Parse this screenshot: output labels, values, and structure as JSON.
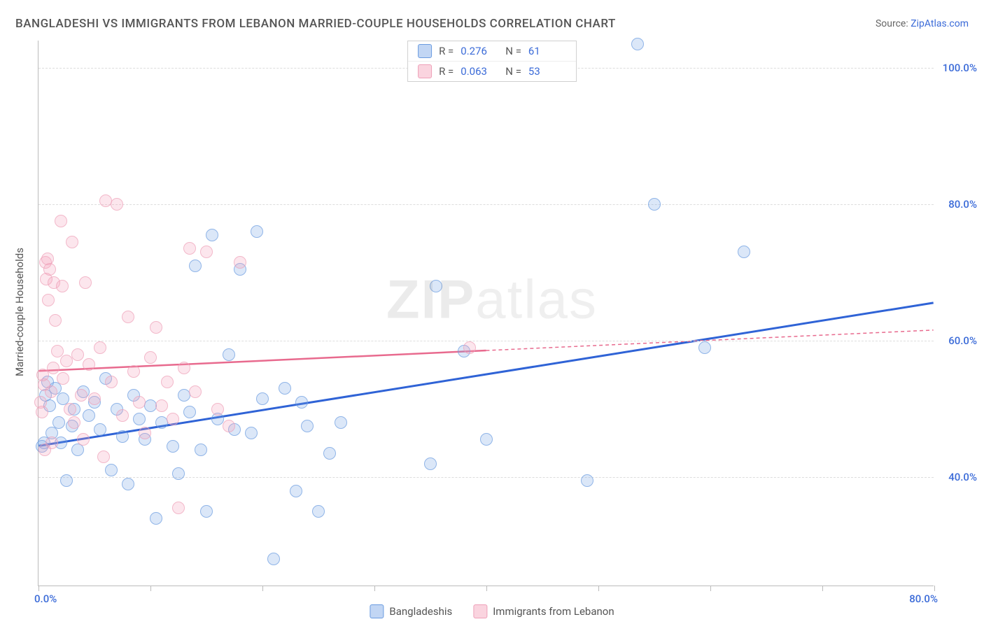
{
  "title": "BANGLADESHI VS IMMIGRANTS FROM LEBANON MARRIED-COUPLE HOUSEHOLDS CORRELATION CHART",
  "source_label": "Source:",
  "source_site": "ZipAtlas.com",
  "watermark_a": "ZIP",
  "watermark_b": "atlas",
  "yaxis_title": "Married-couple Households",
  "chart": {
    "type": "scatter",
    "xlim": [
      0,
      80
    ],
    "ylim": [
      24,
      104
    ],
    "x_ticks": [
      0,
      10,
      20,
      30,
      40,
      50,
      60,
      70,
      80
    ],
    "y_grid": [
      40,
      60,
      80,
      100
    ],
    "y_labels": [
      "40.0%",
      "60.0%",
      "80.0%",
      "100.0%"
    ],
    "x_label_min": "0.0%",
    "x_label_max": "80.0%",
    "background_color": "#ffffff",
    "grid_color": "#dddddd",
    "axis_color": "#bbbbbb",
    "marker_radius": 9,
    "series": [
      {
        "key": "bangladeshi",
        "label": "Bangladeshis",
        "color_fill": "rgba(120,165,230,0.35)",
        "color_stroke": "#6a9be0",
        "trend_color": "#2f63d6",
        "trend_width": 3,
        "trend_dash": "none",
        "R": "0.276",
        "N": "61",
        "trend": {
          "x1": 0,
          "y1": 44.5,
          "x2": 80,
          "y2": 65.5
        },
        "points": [
          [
            0.3,
            44.5
          ],
          [
            0.5,
            45.0
          ],
          [
            0.6,
            52.0
          ],
          [
            0.8,
            54.0
          ],
          [
            1.0,
            50.5
          ],
          [
            1.2,
            46.5
          ],
          [
            1.5,
            53.0
          ],
          [
            1.8,
            48.0
          ],
          [
            2.0,
            45.0
          ],
          [
            2.2,
            51.5
          ],
          [
            2.5,
            39.5
          ],
          [
            3.0,
            47.5
          ],
          [
            3.2,
            50.0
          ],
          [
            3.5,
            44.0
          ],
          [
            4.0,
            52.5
          ],
          [
            4.5,
            49.0
          ],
          [
            5.0,
            51.0
          ],
          [
            5.5,
            47.0
          ],
          [
            6.0,
            54.5
          ],
          [
            6.5,
            41.0
          ],
          [
            7.0,
            50.0
          ],
          [
            7.5,
            46.0
          ],
          [
            8.0,
            39.0
          ],
          [
            8.5,
            52.0
          ],
          [
            9.0,
            48.5
          ],
          [
            9.5,
            45.5
          ],
          [
            10.0,
            50.5
          ],
          [
            10.5,
            34.0
          ],
          [
            11.0,
            48.0
          ],
          [
            12.0,
            44.5
          ],
          [
            12.5,
            40.5
          ],
          [
            13.0,
            52.0
          ],
          [
            13.5,
            49.5
          ],
          [
            14.0,
            71.0
          ],
          [
            14.5,
            44.0
          ],
          [
            15.0,
            35.0
          ],
          [
            15.5,
            75.5
          ],
          [
            16.0,
            48.5
          ],
          [
            17.0,
            58.0
          ],
          [
            17.5,
            47.0
          ],
          [
            18.0,
            70.5
          ],
          [
            19.0,
            46.5
          ],
          [
            19.5,
            76.0
          ],
          [
            20.0,
            51.5
          ],
          [
            21.0,
            28.0
          ],
          [
            22.0,
            53.0
          ],
          [
            23.0,
            38.0
          ],
          [
            24.0,
            47.5
          ],
          [
            25.0,
            35.0
          ],
          [
            26.0,
            43.5
          ],
          [
            23.5,
            51.0
          ],
          [
            27.0,
            48.0
          ],
          [
            35.0,
            42.0
          ],
          [
            35.5,
            68.0
          ],
          [
            38.0,
            58.5
          ],
          [
            40.0,
            45.5
          ],
          [
            49.0,
            39.5
          ],
          [
            55.0,
            80.0
          ],
          [
            53.5,
            103.5
          ],
          [
            59.5,
            59.0
          ],
          [
            63.0,
            73.0
          ]
        ]
      },
      {
        "key": "lebanon",
        "label": "Immigrants from Lebanon",
        "color_fill": "rgba(245,160,185,0.35)",
        "color_stroke": "#eea0b8",
        "trend_color": "#e86a8e",
        "trend_width": 2.5,
        "trend_dash": "5,4",
        "trend_solid_until": 40,
        "R": "0.063",
        "N": "53",
        "trend": {
          "x1": 0,
          "y1": 55.5,
          "x2": 80,
          "y2": 61.5
        },
        "points": [
          [
            0.2,
            51.0
          ],
          [
            0.3,
            49.5
          ],
          [
            0.4,
            55.0
          ],
          [
            0.5,
            53.5
          ],
          [
            0.6,
            71.5
          ],
          [
            0.7,
            69.0
          ],
          [
            0.8,
            72.0
          ],
          [
            0.9,
            66.0
          ],
          [
            1.0,
            70.5
          ],
          [
            1.1,
            52.5
          ],
          [
            1.3,
            56.0
          ],
          [
            1.2,
            45.0
          ],
          [
            1.5,
            63.0
          ],
          [
            1.7,
            58.5
          ],
          [
            2.0,
            77.5
          ],
          [
            2.2,
            54.5
          ],
          [
            2.5,
            57.0
          ],
          [
            2.8,
            50.0
          ],
          [
            3.0,
            74.5
          ],
          [
            3.2,
            48.0
          ],
          [
            3.5,
            58.0
          ],
          [
            3.8,
            52.0
          ],
          [
            4.0,
            45.5
          ],
          [
            4.5,
            56.5
          ],
          [
            5.0,
            51.5
          ],
          [
            5.5,
            59.0
          ],
          [
            5.8,
            43.0
          ],
          [
            6.0,
            80.5
          ],
          [
            6.5,
            54.0
          ],
          [
            7.0,
            80.0
          ],
          [
            7.5,
            49.0
          ],
          [
            8.0,
            63.5
          ],
          [
            8.5,
            55.5
          ],
          [
            9.0,
            51.0
          ],
          [
            9.5,
            46.5
          ],
          [
            10.0,
            57.5
          ],
          [
            10.5,
            62.0
          ],
          [
            11.0,
            50.5
          ],
          [
            11.5,
            54.0
          ],
          [
            12.0,
            48.5
          ],
          [
            12.5,
            35.5
          ],
          [
            13.0,
            56.0
          ],
          [
            13.5,
            73.5
          ],
          [
            14.0,
            52.5
          ],
          [
            15.0,
            73.0
          ],
          [
            16.0,
            50.0
          ],
          [
            17.0,
            47.5
          ],
          [
            18.0,
            71.5
          ],
          [
            38.5,
            59.0
          ],
          [
            1.4,
            68.5
          ],
          [
            0.55,
            44.0
          ],
          [
            2.1,
            68.0
          ],
          [
            4.2,
            68.5
          ]
        ]
      }
    ]
  },
  "legend_top": {
    "r_label": "R =",
    "n_label": "N ="
  }
}
